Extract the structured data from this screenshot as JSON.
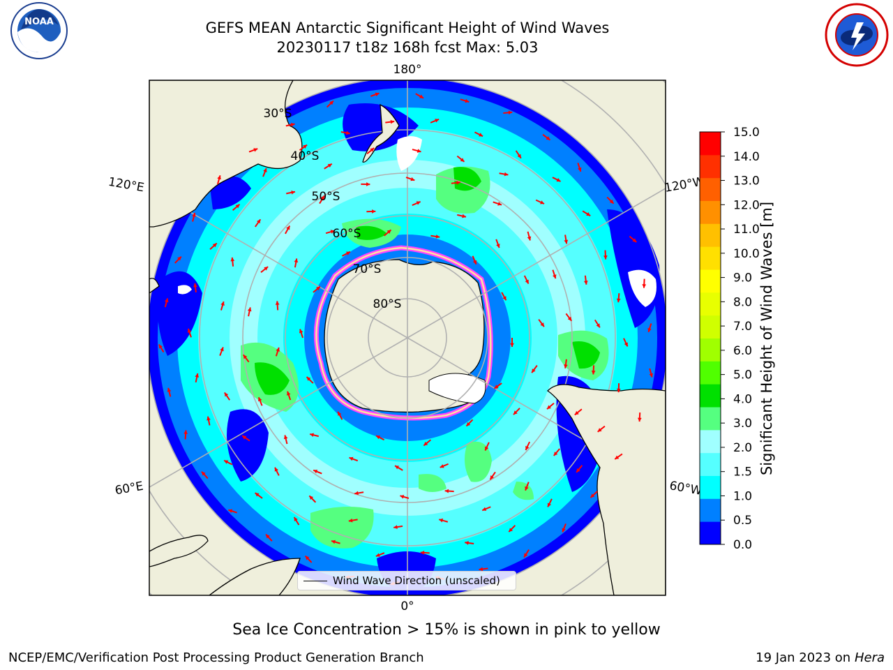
{
  "header": {
    "title_line1": "GEFS MEAN Antarctic Significant Height of Wind Waves",
    "title_line2": "20230117 t18z 168h fcst   Max: 5.03"
  },
  "logos": {
    "left": "noaa-logo",
    "right": "national-weather-service-logo"
  },
  "map": {
    "projection": "south-polar-stereographic",
    "longitude_labels": [
      "180°",
      "120°E",
      "120°W",
      "60°E",
      "60°W",
      "0°"
    ],
    "latitude_labels": [
      "30°S",
      "40°S",
      "50°S",
      "60°S",
      "70°S",
      "80°S"
    ],
    "colors": {
      "land": "#efefdc",
      "ocean_low": "#0000ff",
      "grid": "#b0b0b0",
      "arrows": "#ff0000",
      "ice": "#ff44ff"
    }
  },
  "colorbar": {
    "label": "Significant Height of Wind Waves [m]",
    "ticks": [
      "15.0",
      "14.0",
      "13.0",
      "12.0",
      "11.0",
      "10.0",
      "9.0",
      "8.0",
      "7.0",
      "6.0",
      "5.0",
      "4.0",
      "3.0",
      "2.0",
      "1.5",
      "1.0",
      "0.5",
      "0.0"
    ],
    "colors_bottom_to_top": [
      "#0000ff",
      "#0080ff",
      "#00ffff",
      "#55ffff",
      "#a0ffff",
      "#55ff80",
      "#00e000",
      "#50ff00",
      "#a0ff00",
      "#d0ff00",
      "#e8ff00",
      "#ffff00",
      "#ffe000",
      "#ffc000",
      "#ff9000",
      "#ff6000",
      "#ff3000",
      "#ff0000"
    ]
  },
  "legend": {
    "label": "Wind Wave Direction (unscaled)"
  },
  "note": "Sea Ice Concentration > 15% is shown in pink to yellow",
  "footer": {
    "left": "NCEP/EMC/Verification Post Processing Product Generation Branch",
    "right_prefix": "19 Jan 2023 on ",
    "right_machine": "Hera"
  }
}
